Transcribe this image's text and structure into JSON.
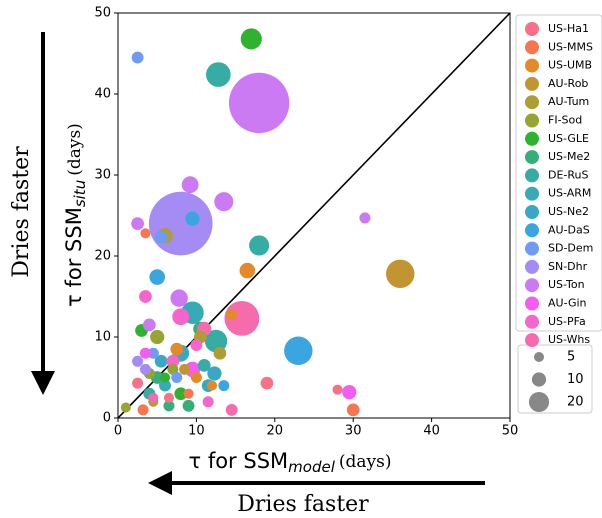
{
  "chart_data": {
    "type": "scatter",
    "xlabel": "τ for SSM",
    "xlabel_sub": "model",
    "xlabel_unit": "(days)",
    "ylabel": "τ for SSM",
    "ylabel_sub": "situ",
    "ylabel_unit": "(days)",
    "annotation_left": "Dries faster",
    "annotation_bottom": "Dries faster",
    "xlim": [
      0,
      50
    ],
    "ylim": [
      0,
      50
    ],
    "xticks": [
      0,
      10,
      20,
      30,
      40,
      50
    ],
    "yticks": [
      0,
      10,
      20,
      30,
      40,
      50
    ],
    "size_legend": [
      5,
      10,
      20
    ],
    "series": [
      {
        "name": "US-Ha1",
        "color": "#f77189",
        "x": [
          28,
          19,
          2.5,
          6.5
        ],
        "values": [
          3.5,
          4.3,
          4.3,
          2.5
        ],
        "sizes": [
          5,
          8,
          6,
          5
        ]
      },
      {
        "name": "US-MMS",
        "color": "#f7754f",
        "x": [
          30,
          3.5,
          3.2,
          9
        ],
        "values": [
          1,
          22.8,
          1,
          3
        ],
        "sizes": [
          8,
          5,
          6,
          5
        ]
      },
      {
        "name": "US-UMB",
        "color": "#e58a2b",
        "x": [
          16.5,
          14.5,
          10,
          7.5,
          12
        ],
        "values": [
          18.2,
          12.8,
          5,
          8.5,
          4
        ],
        "sizes": [
          12,
          6,
          6,
          8,
          5
        ]
      },
      {
        "name": "AU-Rob",
        "color": "#c39532",
        "x": [
          36,
          8.5
        ],
        "values": [
          17.8,
          6
        ],
        "sizes": [
          40,
          6
        ]
      },
      {
        "name": "AU-Tum",
        "color": "#ae9d31",
        "x": [
          6,
          13,
          10.5,
          4.5
        ],
        "values": [
          22.5,
          8,
          10,
          2
        ],
        "sizes": [
          12,
          8,
          8,
          5
        ]
      },
      {
        "name": "FI-Sod",
        "color": "#97a431",
        "x": [
          1,
          5,
          4,
          7
        ],
        "values": [
          1.3,
          10,
          5.5,
          6
        ],
        "sizes": [
          5,
          10,
          6,
          6
        ]
      },
      {
        "name": "US-GLE",
        "color": "#2fb32f",
        "x": [
          17,
          3,
          8,
          6
        ],
        "values": [
          46.8,
          10.8,
          3,
          5
        ],
        "sizes": [
          22,
          8,
          8,
          5
        ]
      },
      {
        "name": "US-Me2",
        "color": "#33b07a",
        "x": [
          5,
          9,
          10.5,
          6.5
        ],
        "values": [
          5,
          1.5,
          11,
          1.5
        ],
        "sizes": [
          8,
          7,
          10,
          6
        ]
      },
      {
        "name": "DE-RuS",
        "color": "#36ada4",
        "x": [
          12.8,
          18,
          12.5,
          4,
          11
        ],
        "values": [
          42.4,
          21.3,
          9.5,
          3,
          6.5
        ],
        "sizes": [
          30,
          20,
          25,
          7,
          8
        ]
      },
      {
        "name": "US-ARM",
        "color": "#37abb5",
        "x": [
          9.5,
          6,
          11.5
        ],
        "values": [
          13,
          4,
          4
        ],
        "sizes": [
          25,
          7,
          8
        ]
      },
      {
        "name": "US-Ne2",
        "color": "#39a8c5",
        "x": [
          8,
          5.5,
          12.3
        ],
        "values": [
          8,
          7,
          5.5
        ],
        "sizes": [
          14,
          8,
          10
        ]
      },
      {
        "name": "AU-DaS",
        "color": "#3aa5df",
        "x": [
          23,
          5,
          13.5,
          9.5
        ],
        "values": [
          8.3,
          17.4,
          4,
          24.6
        ],
        "sizes": [
          40,
          12,
          6,
          10
        ]
      },
      {
        "name": "SD-Dem",
        "color": "#6e9bf4",
        "x": [
          2.5,
          5.5,
          4.5,
          7.5
        ],
        "values": [
          44.5,
          22.3,
          8,
          5
        ],
        "sizes": [
          7,
          8,
          6,
          6
        ]
      },
      {
        "name": "SN-Dhr",
        "color": "#a48cf4",
        "x": [
          8,
          2.5,
          3.5
        ],
        "values": [
          24,
          7,
          6
        ],
        "sizes": [
          200,
          6,
          6
        ]
      },
      {
        "name": "US-Ton",
        "color": "#cc7af4",
        "x": [
          18,
          13.5,
          9.2,
          31.5,
          2.5,
          7.8,
          4
        ],
        "values": [
          38.9,
          26.7,
          28.8,
          24.7,
          24,
          14.8,
          11.5
        ],
        "sizes": [
          180,
          18,
          14,
          6,
          8,
          15,
          8
        ]
      },
      {
        "name": "AU-Gin",
        "color": "#f45cf2",
        "x": [
          29.5,
          3.5,
          9.5
        ],
        "values": [
          3.2,
          8,
          6
        ],
        "sizes": [
          10,
          6,
          12
        ]
      },
      {
        "name": "US-PFa",
        "color": "#f565cc",
        "x": [
          3.5,
          8,
          7,
          11.5,
          10
        ],
        "values": [
          15,
          12.5,
          7,
          2,
          9
        ],
        "sizes": [
          8,
          14,
          8,
          6,
          7
        ]
      },
      {
        "name": "US-Whs",
        "color": "#f66bad",
        "x": [
          15.8,
          14.5,
          11,
          4.5
        ],
        "values": [
          12.3,
          1,
          11,
          2.5
        ],
        "sizes": [
          60,
          7,
          10,
          5
        ]
      }
    ]
  }
}
